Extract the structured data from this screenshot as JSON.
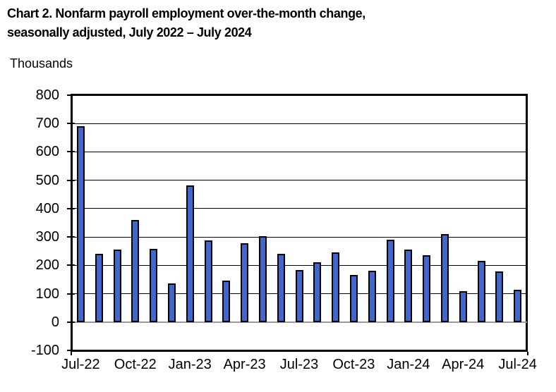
{
  "header": {
    "title_line1": "Chart 2. Nonfarm payroll employment over-the-month change,",
    "title_line2": "seasonally adjusted, July 2022 – July 2024"
  },
  "chart_data": {
    "type": "bar",
    "title": "Chart 2. Nonfarm payroll employment over-the-month change, seasonally adjusted, July 2022 – July 2024",
    "ylabel": "Thousands",
    "xlabel": "",
    "categories": [
      "Jul-22",
      "Aug-22",
      "Sep-22",
      "Oct-22",
      "Nov-22",
      "Dec-22",
      "Jan-23",
      "Feb-23",
      "Mar-23",
      "Apr-23",
      "May-23",
      "Jun-23",
      "Jul-23",
      "Aug-23",
      "Sep-23",
      "Oct-23",
      "Nov-23",
      "Dec-23",
      "Jan-24",
      "Feb-24",
      "Mar-24",
      "Apr-24",
      "May-24",
      "Jun-24",
      "Jul-24"
    ],
    "values": [
      690,
      240,
      255,
      360,
      257,
      135,
      482,
      287,
      146,
      278,
      303,
      240,
      184,
      210,
      246,
      165,
      182,
      290,
      256,
      236,
      310,
      108,
      216,
      179,
      114
    ],
    "x_tick_labels": [
      "Jul-22",
      "Oct-22",
      "Jan-23",
      "Apr-23",
      "Jul-23",
      "Oct-23",
      "Jan-24",
      "Apr-24",
      "Jul-24"
    ],
    "y_ticks": [
      800,
      700,
      600,
      500,
      400,
      300,
      200,
      100,
      0,
      -100
    ],
    "ylim": [
      -100,
      800
    ],
    "grid": "horizontal",
    "legend": "none",
    "bar_color": "#4166CC",
    "bar_border_color": "#000000",
    "gridline_color": "#000000",
    "zero_line_color": "#9a9a9a",
    "plot_border_color": "#000000"
  }
}
